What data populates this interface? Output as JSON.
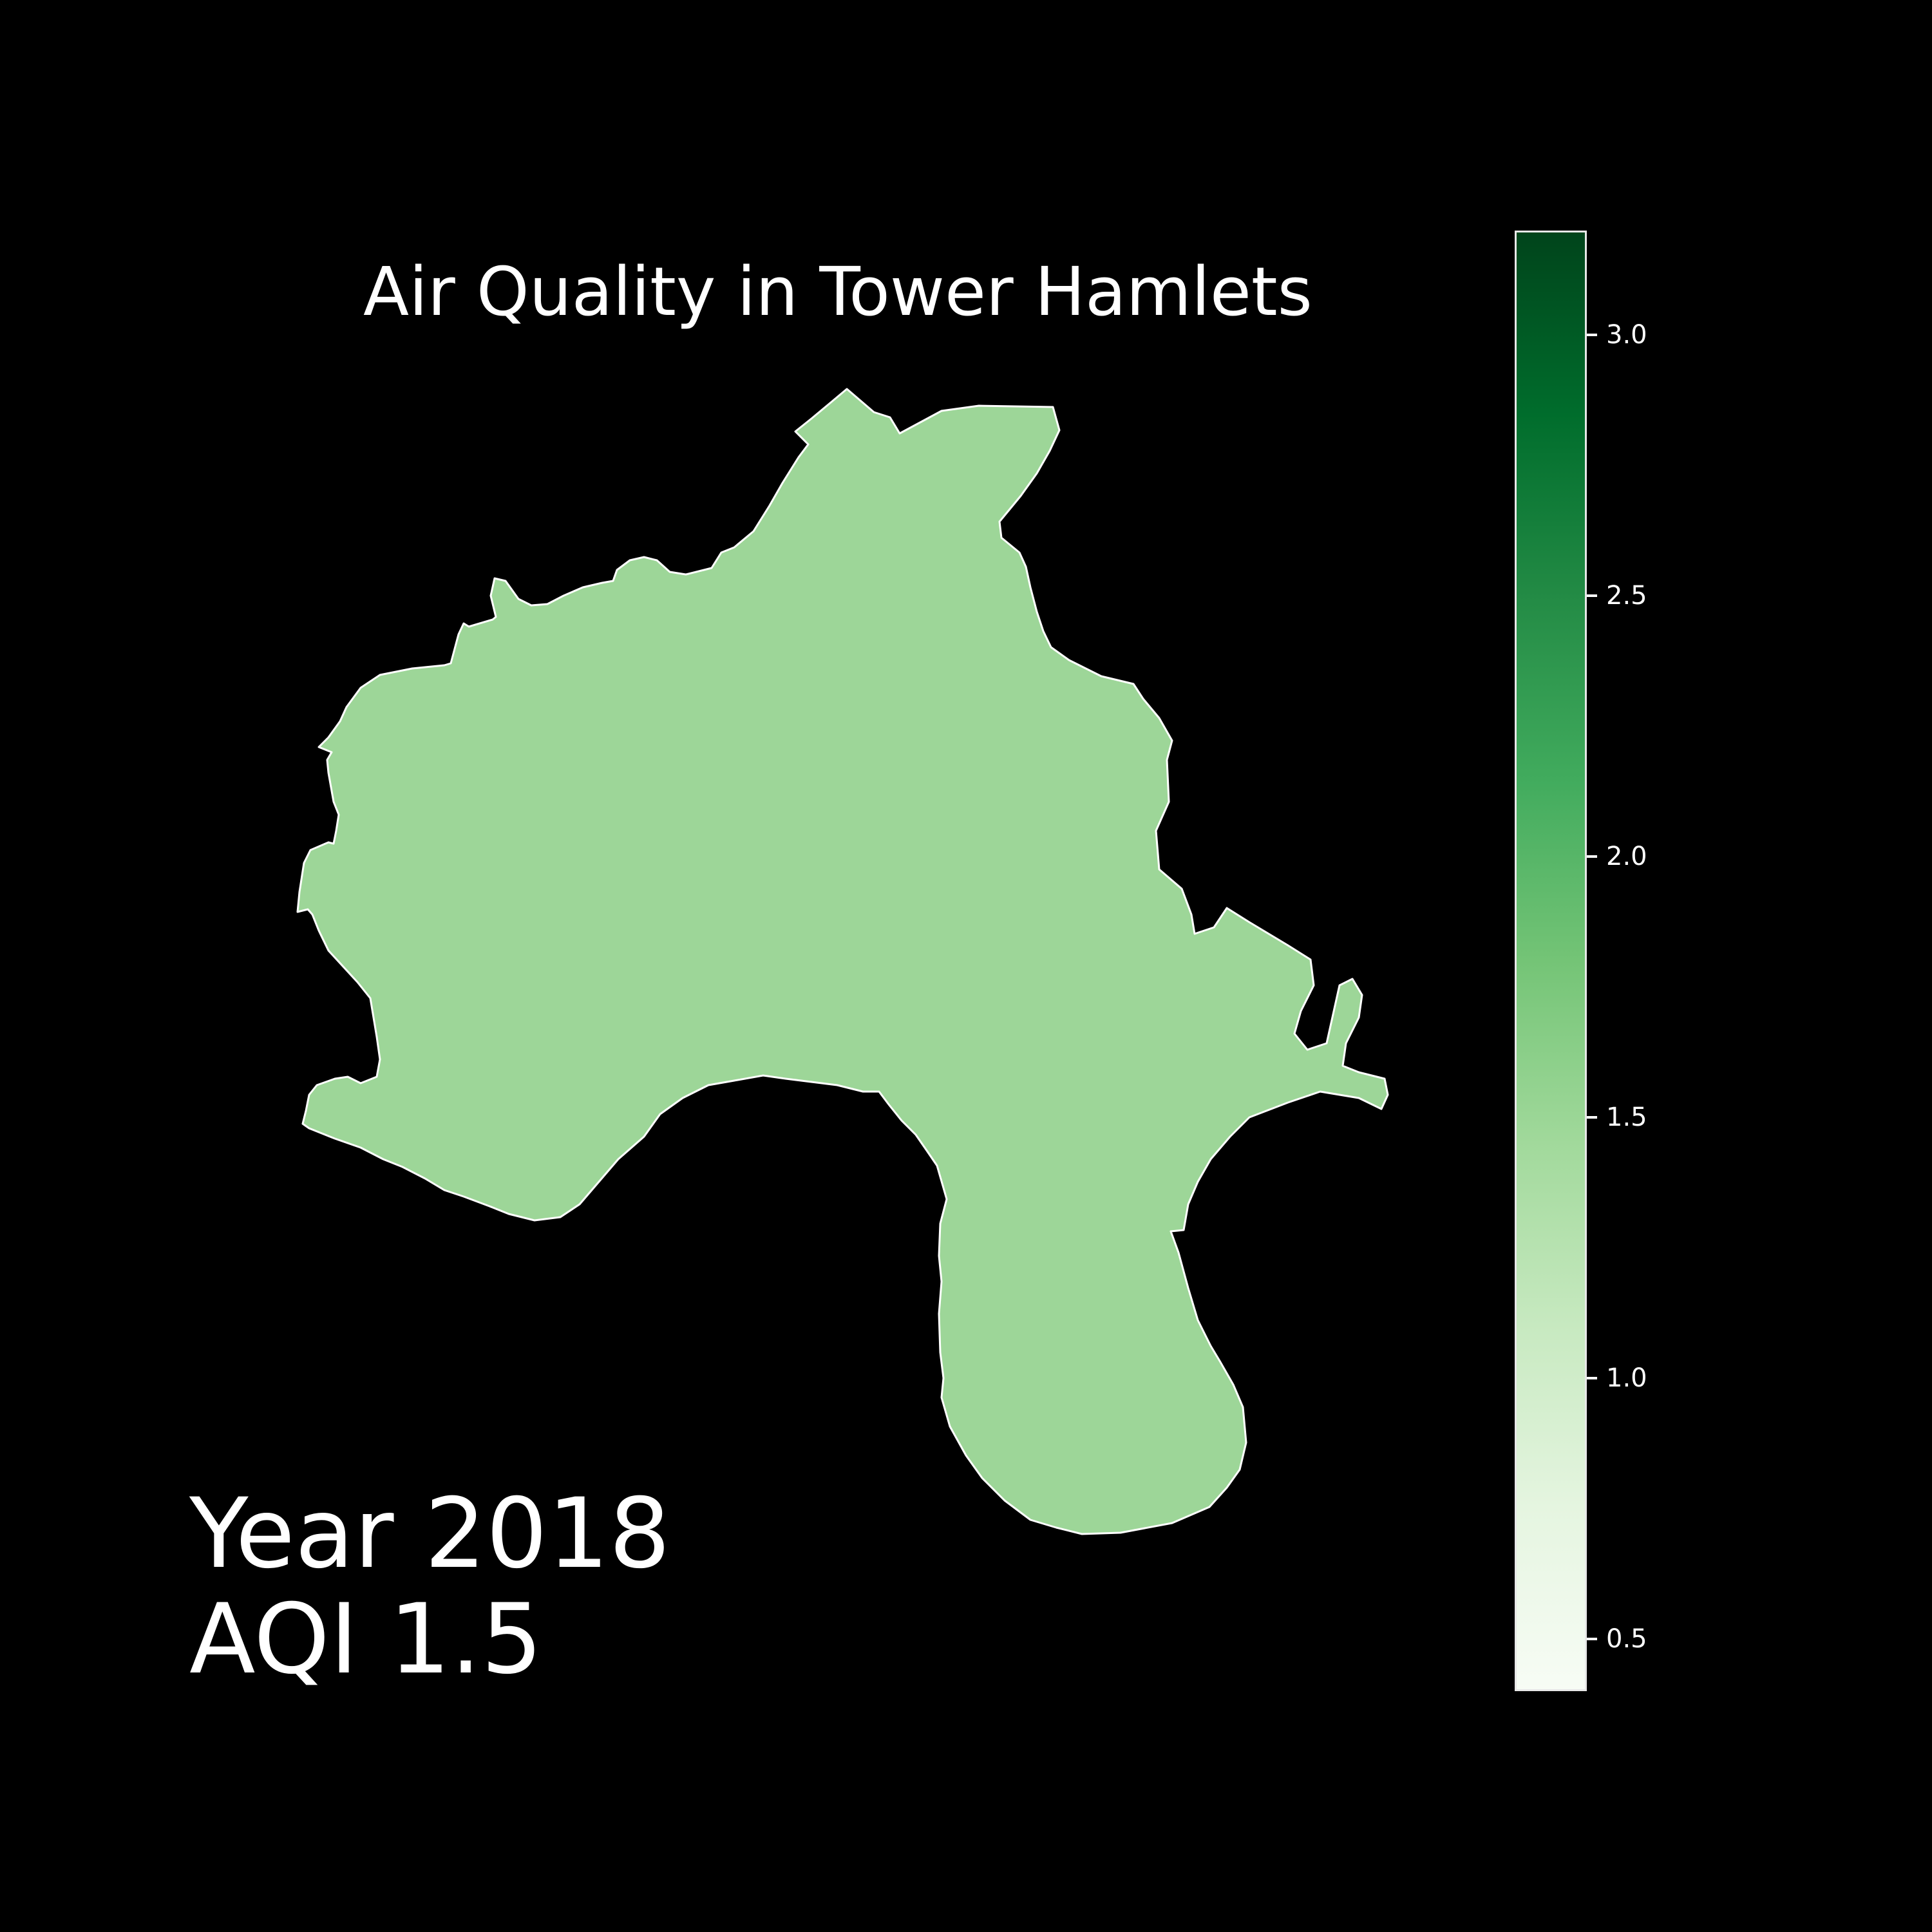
{
  "map": {
    "title": "Air Quality in Tower Hamlets",
    "region_fill_value": 1.5,
    "region_color": "#9dd698",
    "region_outline_color": "#ffffff"
  },
  "info": {
    "year_text": "Year 2018",
    "aqi_text": "AQI 1.5"
  },
  "colorbar": {
    "colormap": "Greens",
    "range": [
      0.4,
      3.2
    ],
    "ticks": [
      {
        "value": 3.0,
        "label": "3.0"
      },
      {
        "value": 2.5,
        "label": "2.5"
      },
      {
        "value": 2.0,
        "label": "2.0"
      },
      {
        "value": 1.5,
        "label": "1.5"
      },
      {
        "value": 1.0,
        "label": "1.0"
      },
      {
        "value": 0.5,
        "label": "0.5"
      }
    ],
    "color_stops": [
      "#f7fcf5",
      "#e5f5e0",
      "#c7e9c0",
      "#a1d99b",
      "#74c476",
      "#41ab5d",
      "#238b45",
      "#006d2c",
      "#00441b"
    ]
  },
  "background_color": "#000000"
}
